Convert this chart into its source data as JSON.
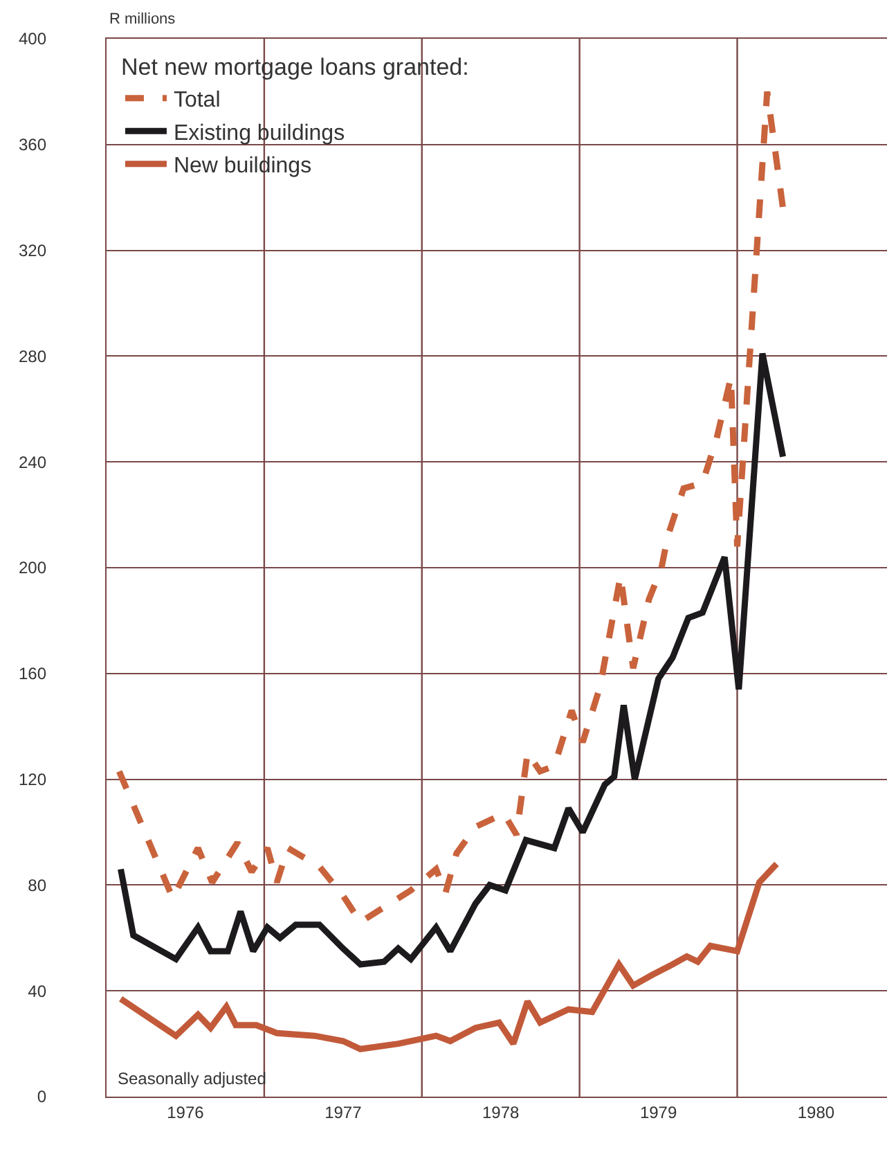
{
  "chart_data": {
    "type": "line",
    "ylabel": "R millions",
    "legend_title": "Net new mortgage loans granted:",
    "annotations": [
      "Seasonally adjusted"
    ],
    "xlim": [
      1976,
      1980.95
    ],
    "xticks": [
      {
        "value": 1976.5,
        "label": "1976"
      },
      {
        "value": 1977,
        "label": null
      },
      {
        "value": 1977.5,
        "label": "1977"
      },
      {
        "value": 1978,
        "label": null
      },
      {
        "value": 1978.5,
        "label": "1978"
      },
      {
        "value": 1979,
        "label": null
      },
      {
        "value": 1979.5,
        "label": "1979"
      },
      {
        "value": 1980,
        "label": null
      },
      {
        "value": 1980.5,
        "label": "1980"
      }
    ],
    "ylim": [
      0,
      400
    ],
    "yticks": [
      0,
      40,
      80,
      120,
      160,
      200,
      240,
      280,
      320,
      360,
      400
    ],
    "grid": true,
    "legend": "top left",
    "marker": "none",
    "series": [
      {
        "name": "Total",
        "color": "#c9633c",
        "line_style": "dashed",
        "x": [
          1976.08,
          1976.42,
          1976.58,
          1976.67,
          1976.83,
          1976.92,
          1977.02,
          1977.08,
          1977.15,
          1977.35,
          1977.5,
          1977.61,
          1977.93,
          1978.09,
          1978.15,
          1978.22,
          1978.34,
          1978.52,
          1978.6,
          1978.67,
          1978.75,
          1978.84,
          1978.95,
          1979.02,
          1979.13,
          1979.26,
          1979.34,
          1979.44,
          1979.52,
          1979.56,
          1979.66,
          1979.78,
          1979.87,
          1979.96,
          1980.0,
          1980.19,
          1980.29
        ],
        "values": [
          123,
          75,
          94,
          81,
          96,
          85,
          94,
          81,
          94,
          87,
          76,
          66,
          78,
          86,
          77,
          92,
          102,
          107,
          99,
          130,
          123,
          125,
          146,
          134,
          155,
          197,
          162,
          188,
          200,
          212,
          230,
          232,
          249,
          272,
          208,
          380,
          336
        ]
      },
      {
        "name": "Existing buildings",
        "color": "#1c1a1c",
        "line_style": "solid",
        "x": [
          1976.09,
          1976.17,
          1976.44,
          1976.58,
          1976.66,
          1976.77,
          1976.85,
          1976.93,
          1977.02,
          1977.1,
          1977.2,
          1977.35,
          1977.5,
          1977.61,
          1977.76,
          1977.85,
          1977.93,
          1978.09,
          1978.18,
          1978.34,
          1978.43,
          1978.53,
          1978.66,
          1978.84,
          1978.93,
          1979.02,
          1979.16,
          1979.22,
          1979.28,
          1979.35,
          1979.5,
          1979.59,
          1979.69,
          1979.78,
          1979.92,
          1980.01,
          1980.16,
          1980.29
        ],
        "values": [
          86,
          61,
          52,
          64,
          55,
          55,
          70,
          55,
          64,
          60,
          65,
          65,
          56,
          50,
          51,
          56,
          52,
          64,
          55,
          73,
          80,
          78,
          97,
          94,
          109,
          100,
          118,
          121,
          148,
          120,
          158,
          166,
          181,
          183,
          204,
          154,
          281,
          242
        ]
      },
      {
        "name": "New buildings",
        "color": "#c25a3a",
        "line_style": "solid",
        "x": [
          1976.09,
          1976.44,
          1976.58,
          1976.66,
          1976.76,
          1976.82,
          1976.95,
          1977.08,
          1977.32,
          1977.5,
          1977.61,
          1977.85,
          1978.09,
          1978.18,
          1978.34,
          1978.49,
          1978.58,
          1978.67,
          1978.75,
          1978.93,
          1979.08,
          1979.25,
          1979.34,
          1979.46,
          1979.59,
          1979.68,
          1979.75,
          1979.83,
          1980.0,
          1980.14,
          1980.25
        ],
        "values": [
          37,
          23,
          31,
          26,
          34,
          27,
          27,
          24,
          23,
          21,
          18,
          20,
          23,
          21,
          26,
          28,
          20,
          36,
          28,
          33,
          32,
          50,
          42,
          46,
          50,
          53,
          51,
          57,
          55,
          81,
          88
        ]
      }
    ]
  }
}
